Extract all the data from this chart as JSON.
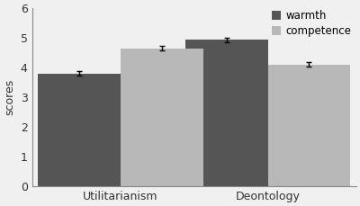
{
  "categories": [
    "Utilitarianism",
    "Deontology"
  ],
  "warmth_values": [
    3.8,
    4.93
  ],
  "competence_values": [
    4.65,
    4.1
  ],
  "warmth_errors": [
    0.08,
    0.07
  ],
  "competence_errors": [
    0.07,
    0.08
  ],
  "warmth_color": "#555555",
  "competence_color": "#b8b8b8",
  "ylabel": "scores",
  "ylim": [
    0,
    6
  ],
  "yticks": [
    0,
    1,
    2,
    3,
    4,
    5,
    6
  ],
  "legend_labels": [
    "warmth",
    "competence"
  ],
  "bar_width": 0.28,
  "group_centers": [
    0.25,
    0.75
  ],
  "background_color": "#f0f0f0",
  "figsize": [
    4.0,
    2.29
  ],
  "dpi": 100
}
